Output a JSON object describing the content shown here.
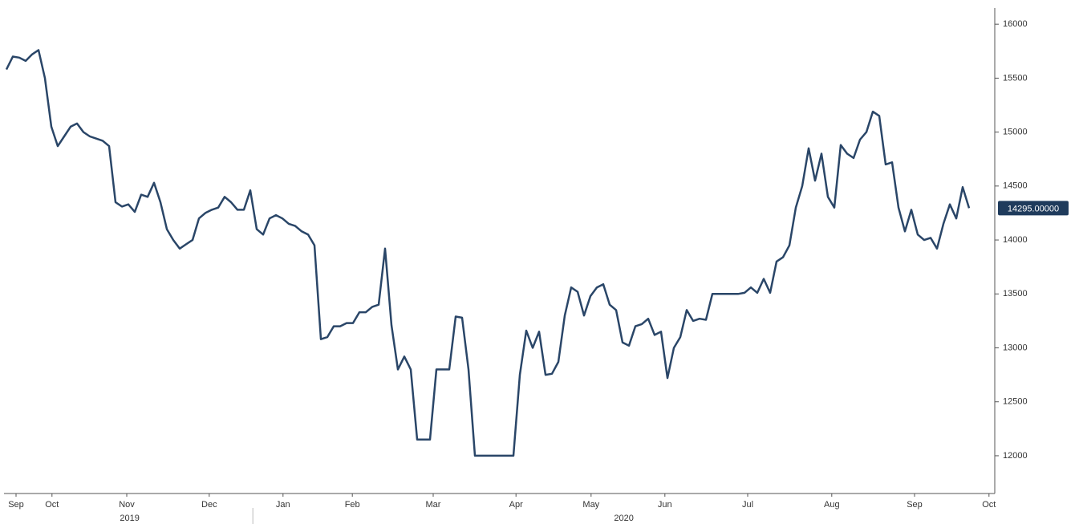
{
  "chart_data": {
    "type": "line",
    "color": "#2a4668",
    "values": [
      15580,
      15700,
      15690,
      15660,
      15720,
      15760,
      15500,
      15050,
      14870,
      14960,
      15050,
      15080,
      15000,
      14960,
      14940,
      14920,
      14870,
      14350,
      14310,
      14330,
      14260,
      14420,
      14400,
      14530,
      14350,
      14100,
      14000,
      13920,
      13960,
      14000,
      14200,
      14250,
      14280,
      14300,
      14400,
      14350,
      14280,
      14280,
      14460,
      14100,
      14050,
      14200,
      14230,
      14200,
      14150,
      14130,
      14080,
      14050,
      13950,
      13080,
      13100,
      13200,
      13200,
      13230,
      13230,
      13330,
      13330,
      13380,
      13400,
      13920,
      13210,
      12800,
      12920,
      12800,
      12150,
      12150,
      12150,
      12800,
      12800,
      12800,
      13290,
      13280,
      12800,
      12000,
      12000,
      12000,
      12000,
      12000,
      12000,
      12000,
      12750,
      13160,
      13000,
      13150,
      12750,
      12760,
      12870,
      13300,
      13560,
      13520,
      13300,
      13480,
      13560,
      13590,
      13400,
      13350,
      13050,
      13020,
      13200,
      13220,
      13270,
      13120,
      13150,
      12720,
      13000,
      13100,
      13350,
      13250,
      13270,
      13260,
      13500,
      13500,
      13500,
      13500,
      13500,
      13510,
      13560,
      13510,
      13640,
      13510,
      13800,
      13840,
      13950,
      14300,
      14500,
      14850,
      14550,
      14800,
      14400,
      14300,
      14880,
      14800,
      14760,
      14930,
      15000,
      15190,
      15150,
      14700,
      14720,
      14300,
      14080,
      14280,
      14050,
      14000,
      14020,
      13920,
      14150,
      14330,
      14200,
      14490,
      14295
    ],
    "value_labels": [
      null,
      null,
      null,
      null,
      null,
      null,
      null,
      null,
      null,
      null,
      null,
      null,
      null,
      null,
      null,
      null,
      null,
      null,
      null,
      null,
      null,
      null,
      null,
      null,
      null,
      null,
      null,
      null,
      null,
      null,
      null,
      null,
      null,
      null,
      null,
      null,
      null,
      null,
      null,
      null,
      null,
      null,
      null,
      null,
      null,
      null,
      null,
      null,
      null,
      null,
      null,
      null,
      null,
      null,
      null,
      null,
      null,
      null,
      null,
      null,
      null,
      null,
      null,
      null,
      null,
      null,
      null,
      null,
      null,
      null,
      null,
      null,
      null,
      null,
      null,
      null,
      null,
      null,
      null,
      null,
      null,
      null,
      null,
      null,
      null,
      null,
      null,
      null,
      null,
      null,
      null,
      null,
      null,
      null,
      null,
      null,
      null,
      null,
      null,
      null,
      null,
      null,
      null,
      null,
      null,
      null,
      null,
      null,
      null,
      null,
      null,
      null,
      null,
      null,
      null,
      null,
      null,
      null,
      null,
      null,
      null,
      null,
      null,
      null,
      null,
      null,
      null,
      null,
      null,
      null,
      null,
      null,
      null,
      null,
      null,
      null,
      null,
      null,
      null,
      null,
      null,
      null,
      null,
      null,
      null,
      null,
      null,
      null,
      null,
      null,
      "14295.00000"
    ],
    "xlim": [
      0,
      154
    ],
    "xticks": [
      {
        "value": 1.5,
        "label": "Sep"
      },
      {
        "value": 7.1,
        "label": "Oct"
      },
      {
        "value": 18.75,
        "label": "Nov"
      },
      {
        "value": 31.6,
        "label": "Dec"
      },
      {
        "value": 43.1,
        "label": "Jan"
      },
      {
        "value": 53.9,
        "label": "Feb"
      },
      {
        "value": 66.5,
        "label": "Mar"
      },
      {
        "value": 79.4,
        "label": "Apr"
      },
      {
        "value": 91.1,
        "label": "May"
      },
      {
        "value": 102.6,
        "label": "Jun"
      },
      {
        "value": 115.5,
        "label": "Jul"
      },
      {
        "value": 128.6,
        "label": "Aug"
      },
      {
        "value": 141.5,
        "label": "Sep"
      },
      {
        "value": 153.1,
        "label": "Oct"
      }
    ],
    "xgroups": [
      {
        "label": "2019",
        "start": 0,
        "end": 38.4
      },
      {
        "label": "2020",
        "start": 38.4,
        "end": 154
      }
    ],
    "ylim": [
      11650,
      16150
    ],
    "yticks": [
      12000,
      12500,
      13000,
      13500,
      14000,
      14500,
      15000,
      15500,
      16000
    ]
  }
}
